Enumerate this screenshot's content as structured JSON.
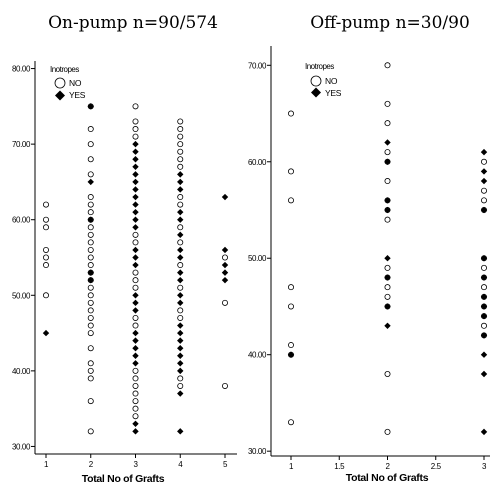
{
  "colors": {
    "ink": "#000000",
    "background": "#ffffff"
  },
  "chart_data": [
    {
      "type": "scatter",
      "title": "On-pump n=90/574",
      "xlabel": "Total No of Grafts",
      "ylabel": "",
      "xlim": [
        0.75,
        5.25
      ],
      "ylim": [
        29,
        81
      ],
      "xticks": [
        "1",
        "2",
        "3",
        "4",
        "5"
      ],
      "yticks": [
        "30.00",
        "40.00",
        "50.00",
        "60.00",
        "70.00",
        "80.00"
      ],
      "legend": {
        "title": "Inotropes",
        "position": "top-left",
        "entries": [
          "NO",
          "YES"
        ]
      },
      "series": [
        {
          "name": "NO",
          "marker": "open-circle",
          "points": [
            [
              1,
              62
            ],
            [
              1,
              60
            ],
            [
              1,
              59
            ],
            [
              1,
              56
            ],
            [
              1,
              55
            ],
            [
              1,
              54
            ],
            [
              1,
              50
            ],
            [
              2,
              75
            ],
            [
              2,
              72
            ],
            [
              2,
              70
            ],
            [
              2,
              68
            ],
            [
              2,
              66
            ],
            [
              2,
              63
            ],
            [
              2,
              62
            ],
            [
              2,
              61
            ],
            [
              2,
              60
            ],
            [
              2,
              59
            ],
            [
              2,
              58
            ],
            [
              2,
              57
            ],
            [
              2,
              56
            ],
            [
              2,
              55
            ],
            [
              2,
              54
            ],
            [
              2,
              53
            ],
            [
              2,
              52
            ],
            [
              2,
              51
            ],
            [
              2,
              50
            ],
            [
              2,
              49
            ],
            [
              2,
              48
            ],
            [
              2,
              47
            ],
            [
              2,
              46
            ],
            [
              2,
              45
            ],
            [
              2,
              43
            ],
            [
              2,
              41
            ],
            [
              2,
              40
            ],
            [
              2,
              39
            ],
            [
              2,
              36
            ],
            [
              2,
              32
            ],
            [
              3,
              75
            ],
            [
              3,
              73
            ],
            [
              3,
              72
            ],
            [
              3,
              71
            ],
            [
              3,
              58
            ],
            [
              3,
              57
            ],
            [
              3,
              53
            ],
            [
              3,
              52
            ],
            [
              3,
              51
            ],
            [
              3,
              47
            ],
            [
              3,
              46
            ],
            [
              3,
              40
            ],
            [
              3,
              39
            ],
            [
              3,
              38
            ],
            [
              3,
              37
            ],
            [
              3,
              36
            ],
            [
              3,
              35
            ],
            [
              3,
              34
            ],
            [
              4,
              73
            ],
            [
              4,
              72
            ],
            [
              4,
              71
            ],
            [
              4,
              70
            ],
            [
              4,
              69
            ],
            [
              4,
              68
            ],
            [
              4,
              67
            ],
            [
              4,
              63
            ],
            [
              4,
              62
            ],
            [
              4,
              59
            ],
            [
              4,
              57
            ],
            [
              4,
              54
            ],
            [
              4,
              51
            ],
            [
              4,
              48
            ],
            [
              4,
              47
            ],
            [
              4,
              39
            ],
            [
              4,
              38
            ],
            [
              5,
              55
            ],
            [
              5,
              49
            ],
            [
              5,
              38
            ]
          ]
        },
        {
          "name": "YES",
          "marker": "filled-diamond",
          "points": [
            [
              1,
              45
            ],
            [
              2,
              75
            ],
            [
              2,
              65
            ],
            [
              2,
              60
            ],
            [
              2,
              53
            ],
            [
              2,
              52
            ],
            [
              3,
              70
            ],
            [
              3,
              69
            ],
            [
              3,
              68
            ],
            [
              3,
              67
            ],
            [
              3,
              66
            ],
            [
              3,
              65
            ],
            [
              3,
              64
            ],
            [
              3,
              63
            ],
            [
              3,
              62
            ],
            [
              3,
              61
            ],
            [
              3,
              60
            ],
            [
              3,
              59
            ],
            [
              3,
              56
            ],
            [
              3,
              55
            ],
            [
              3,
              54
            ],
            [
              3,
              50
            ],
            [
              3,
              49
            ],
            [
              3,
              48
            ],
            [
              3,
              45
            ],
            [
              3,
              44
            ],
            [
              3,
              43
            ],
            [
              3,
              42
            ],
            [
              3,
              41
            ],
            [
              3,
              33
            ],
            [
              3,
              32
            ],
            [
              4,
              66
            ],
            [
              4,
              65
            ],
            [
              4,
              64
            ],
            [
              4,
              61
            ],
            [
              4,
              60
            ],
            [
              4,
              58
            ],
            [
              4,
              56
            ],
            [
              4,
              55
            ],
            [
              4,
              53
            ],
            [
              4,
              52
            ],
            [
              4,
              50
            ],
            [
              4,
              49
            ],
            [
              4,
              46
            ],
            [
              4,
              45
            ],
            [
              4,
              44
            ],
            [
              4,
              43
            ],
            [
              4,
              42
            ],
            [
              4,
              41
            ],
            [
              4,
              40
            ],
            [
              4,
              37
            ],
            [
              4,
              32
            ],
            [
              5,
              63
            ],
            [
              5,
              56
            ],
            [
              5,
              54
            ],
            [
              5,
              53
            ],
            [
              5,
              52
            ]
          ]
        }
      ]
    },
    {
      "type": "scatter",
      "title": "Off-pump n=30/90",
      "xlabel": "Total No of Grafts",
      "ylabel": "",
      "xlim": [
        0.85,
        3.05
      ],
      "ylim": [
        29.5,
        72
      ],
      "xticks": [
        "1",
        "1.5",
        "2",
        "2.5",
        "3"
      ],
      "yticks": [
        "30.00",
        "40.00",
        "50.00",
        "60.00",
        "70.00"
      ],
      "legend": {
        "title": "Inotropes",
        "position": "top-left",
        "entries": [
          "NO",
          "YES"
        ]
      },
      "series": [
        {
          "name": "NO",
          "marker": "open-circle",
          "points": [
            [
              1,
              65
            ],
            [
              1,
              59
            ],
            [
              1,
              56
            ],
            [
              1,
              47
            ],
            [
              1,
              45
            ],
            [
              1,
              41
            ],
            [
              1,
              40
            ],
            [
              1,
              33
            ],
            [
              2,
              70
            ],
            [
              2,
              66
            ],
            [
              2,
              64
            ],
            [
              2,
              61
            ],
            [
              2,
              60
            ],
            [
              2,
              58
            ],
            [
              2,
              56
            ],
            [
              2,
              55
            ],
            [
              2,
              54
            ],
            [
              2,
              49
            ],
            [
              2,
              48
            ],
            [
              2,
              47
            ],
            [
              2,
              46
            ],
            [
              2,
              45
            ],
            [
              2,
              38
            ],
            [
              2,
              32
            ],
            [
              3,
              60
            ],
            [
              3,
              57
            ],
            [
              3,
              56
            ],
            [
              3,
              55
            ],
            [
              3,
              50
            ],
            [
              3,
              49
            ],
            [
              3,
              48
            ],
            [
              3,
              47
            ],
            [
              3,
              46
            ],
            [
              3,
              45
            ],
            [
              3,
              44
            ],
            [
              3,
              43
            ],
            [
              3,
              42
            ]
          ]
        },
        {
          "name": "YES",
          "marker": "filled-diamond",
          "points": [
            [
              1,
              40
            ],
            [
              2,
              62
            ],
            [
              2,
              60
            ],
            [
              2,
              56
            ],
            [
              2,
              55
            ],
            [
              2,
              50
            ],
            [
              2,
              48
            ],
            [
              2,
              45
            ],
            [
              2,
              43
            ],
            [
              3,
              61
            ],
            [
              3,
              59
            ],
            [
              3,
              58
            ],
            [
              3,
              55
            ],
            [
              3,
              50
            ],
            [
              3,
              48
            ],
            [
              3,
              46
            ],
            [
              3,
              45
            ],
            [
              3,
              44
            ],
            [
              3,
              42
            ],
            [
              3,
              40
            ],
            [
              3,
              38
            ],
            [
              3,
              32
            ]
          ]
        }
      ]
    }
  ]
}
